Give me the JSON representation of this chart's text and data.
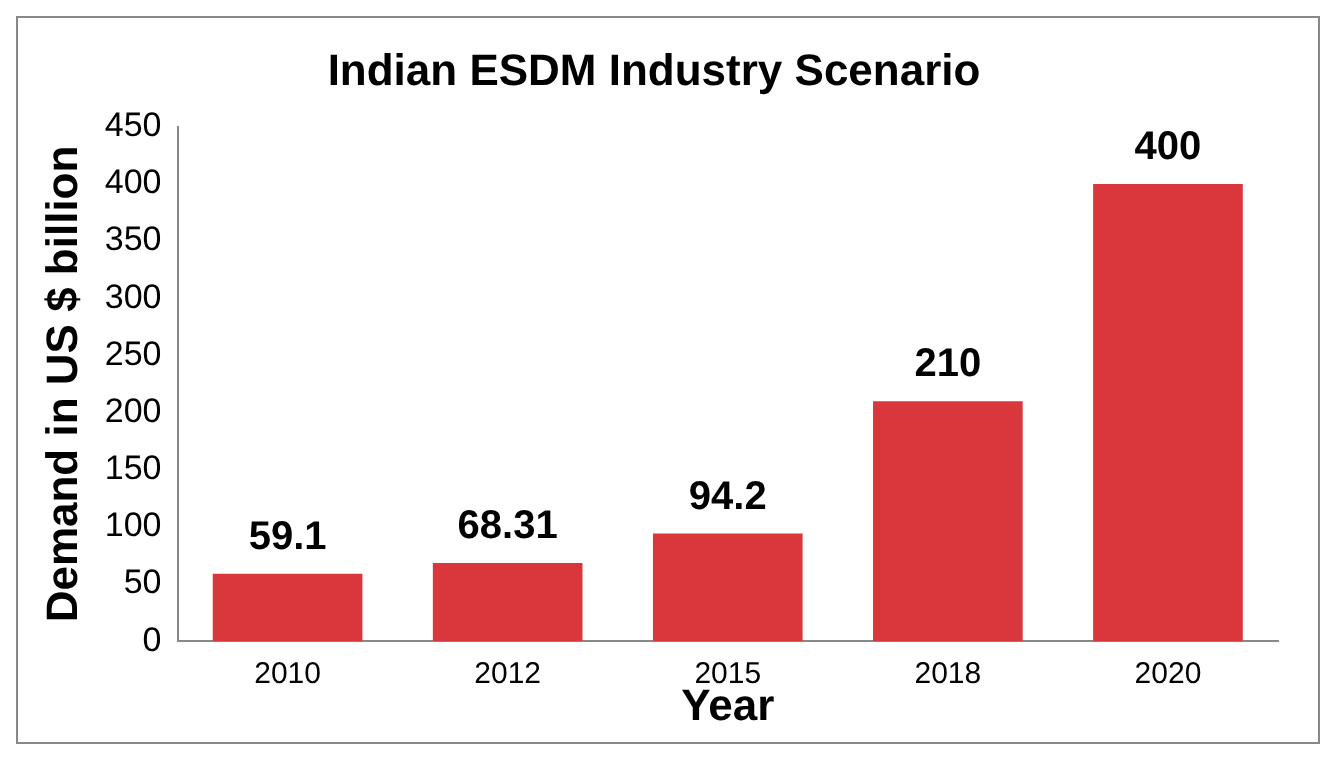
{
  "chart_data": {
    "type": "bar",
    "title": "Indian ESDM Industry Scenario",
    "xlabel": "Year",
    "ylabel": "Demand in US $ billion",
    "categories": [
      "2010",
      "2012",
      "2015",
      "2018",
      "2020"
    ],
    "values": [
      59.1,
      68.31,
      94.2,
      210,
      400
    ],
    "color": "#d9373c",
    "ylim": [
      0,
      450
    ],
    "yticks": [
      0,
      50,
      100,
      150,
      200,
      250,
      300,
      350,
      400,
      450
    ],
    "grid": false,
    "legend": false,
    "data_labels": true
  }
}
